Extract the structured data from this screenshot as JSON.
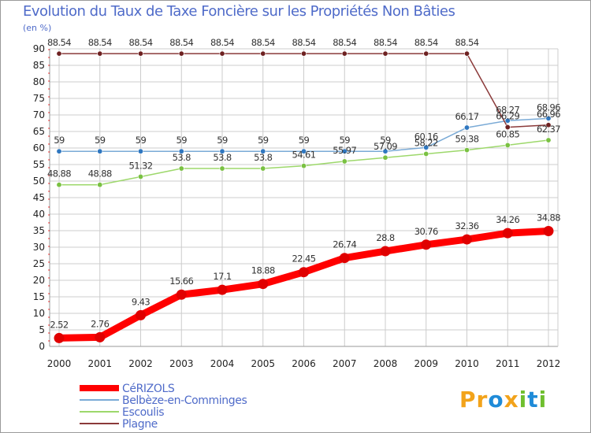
{
  "header": {
    "title": "Evolution du Taux de Taxe Foncière sur les Propriétés Non Bâties",
    "unit": "(en %)"
  },
  "logo": {
    "text": "Proxiti"
  },
  "colors": {
    "title": "#4f6bc9",
    "grid": "#cccccc",
    "axis_text": "#222222",
    "label_text": "#333333",
    "logo": [
      "#f2a31b",
      "#f2a31b",
      "#1f8bd8",
      "#f2a31b",
      "#6fbf2f",
      "#1f8bd8",
      "#6fbf2f"
    ]
  },
  "chart_data": {
    "type": "line",
    "title": "Evolution du Taux de Taxe Foncière sur les Propriétés Non Bâties",
    "ylabel": "(en %)",
    "xlabel": "",
    "ylim": [
      0,
      90
    ],
    "yticks": [
      0,
      5,
      10,
      15,
      20,
      25,
      30,
      35,
      40,
      45,
      50,
      55,
      60,
      65,
      70,
      75,
      80,
      85,
      90
    ],
    "x": [
      "2000",
      "2001",
      "2002",
      "2003",
      "2004",
      "2005",
      "2006",
      "2007",
      "2008",
      "2009",
      "2010",
      "2011",
      "2012"
    ],
    "grid": true,
    "legend_position": "bottom-left",
    "series": [
      {
        "name": "CéRIZOLS",
        "color": "#ff0000",
        "marker": "#e00000",
        "values": [
          2.52,
          2.76,
          9.43,
          15.66,
          17.1,
          18.88,
          22.45,
          26.74,
          28.8,
          30.76,
          32.36,
          34.26,
          34.88
        ],
        "labels": [
          "2.52",
          "2.76",
          "9.43",
          "15.66",
          "17.1",
          "18.88",
          "22.45",
          "26.74",
          "28.8",
          "30.76",
          "32.36",
          "34.26",
          "34.88"
        ]
      },
      {
        "name": "Belbèze-en-Comminges",
        "color": "#7aaad6",
        "marker": "#2f77c0",
        "values": [
          59,
          59,
          59,
          59,
          59,
          59,
          59,
          59,
          59,
          60.16,
          66.17,
          68.27,
          68.96
        ],
        "labels": [
          "59",
          "59",
          "59",
          "59",
          "59",
          "59",
          "59",
          "59",
          "59",
          "60.16",
          "66.17",
          "68.27",
          "68.96"
        ]
      },
      {
        "name": "Escoulis",
        "color": "#9dd86b",
        "marker": "#7ac142",
        "values": [
          48.88,
          48.88,
          51.32,
          53.8,
          53.8,
          53.8,
          54.61,
          55.97,
          57.09,
          58.22,
          59.38,
          60.85,
          62.37
        ],
        "labels": [
          "48.88",
          "48.88",
          "51.32",
          "53.8",
          "53.8",
          "53.8",
          "54.61",
          "55.97",
          "57.09",
          "58.22",
          "59.38",
          "60.85",
          "62.37"
        ]
      },
      {
        "name": "Plagne",
        "color": "#8b3a3a",
        "marker": "#6e2121",
        "values": [
          88.54,
          88.54,
          88.54,
          88.54,
          88.54,
          88.54,
          88.54,
          88.54,
          88.54,
          88.54,
          88.54,
          66.29,
          66.96
        ],
        "labels": [
          "88.54",
          "88.54",
          "88.54",
          "88.54",
          "88.54",
          "88.54",
          "88.54",
          "88.54",
          "88.54",
          "88.54",
          "88.54",
          "66.29",
          "66.96"
        ]
      }
    ]
  }
}
